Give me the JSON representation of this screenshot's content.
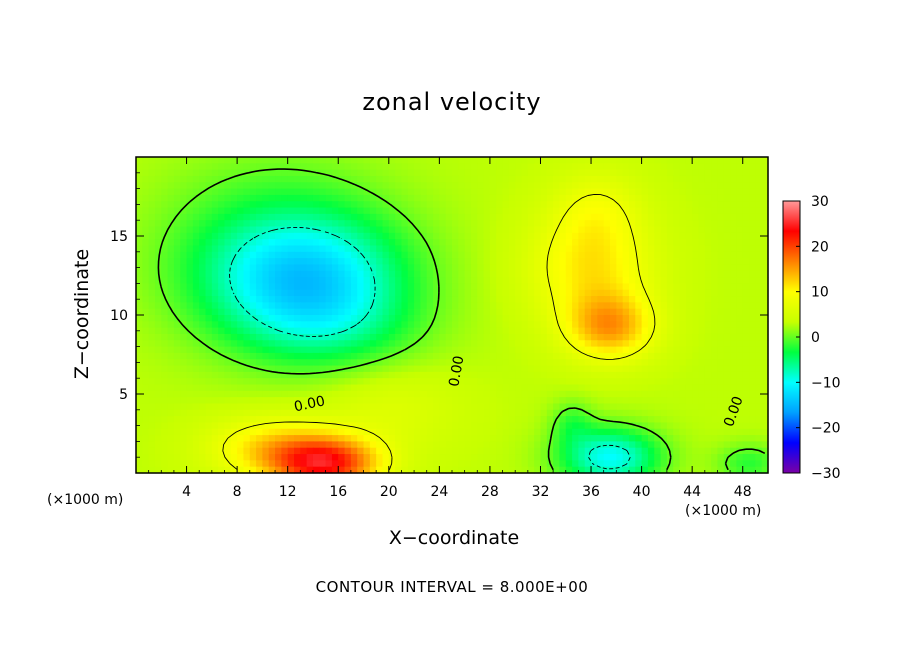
{
  "chart_data": {
    "type": "heatmap",
    "title": "zonal velocity",
    "xlabel": "X−coordinate",
    "ylabel": "Z−coordinate",
    "x_multiplier_left": "(×1000 m)",
    "x_multiplier_right": "(×1000 m)",
    "footer": "CONTOUR INTERVAL = 8.000E+00",
    "xlim": [
      0,
      50
    ],
    "ylim": [
      0,
      20
    ],
    "x_ticks": [
      4,
      8,
      12,
      16,
      20,
      24,
      28,
      32,
      36,
      40,
      44,
      48
    ],
    "x_tick_labels": [
      "4",
      "8",
      "12",
      "16",
      "20",
      "24",
      "28",
      "32",
      "36",
      "40",
      "44",
      "48"
    ],
    "y_ticks": [
      5,
      10,
      15
    ],
    "y_tick_labels": [
      "5",
      "10",
      "15"
    ],
    "colorbar": {
      "range": [
        -30,
        30
      ],
      "ticks": [
        -30,
        -20,
        -10,
        0,
        10,
        20,
        30
      ],
      "tick_labels": [
        "−30",
        "−20",
        "−10",
        "0",
        "10",
        "20",
        "30"
      ],
      "colors": [
        "#7a00a6",
        "#0000ff",
        "#00a0ff",
        "#00ffff",
        "#00ff40",
        "#c8ff00",
        "#ffff00",
        "#ff8000",
        "#ff0000",
        "#ff9a9a"
      ]
    },
    "contour_labels": [
      "0.00",
      "0.00",
      "0.00"
    ],
    "background_value": 3,
    "field_features": [
      {
        "x": 13.5,
        "y": 12.2,
        "value": -13,
        "sx": 5.5,
        "sy": 2.8
      },
      {
        "x": 11.0,
        "y": 14.5,
        "value": -5,
        "sx": 6.5,
        "sy": 4.0
      },
      {
        "x": 15.5,
        "y": 9.0,
        "value": -4,
        "sx": 5.0,
        "sy": 2.0
      },
      {
        "x": 15.0,
        "y": 0.6,
        "value": 19,
        "sx": 3.0,
        "sy": 1.2
      },
      {
        "x": 10.5,
        "y": 1.6,
        "value": 8,
        "sx": 3.5,
        "sy": 1.4
      },
      {
        "x": 37.5,
        "y": 9.2,
        "value": 11,
        "sx": 2.5,
        "sy": 1.5
      },
      {
        "x": 36.0,
        "y": 13.0,
        "value": 8,
        "sx": 3.5,
        "sy": 2.5
      },
      {
        "x": 36.5,
        "y": 16.8,
        "value": 4,
        "sx": 2.5,
        "sy": 1.8
      },
      {
        "x": 37.5,
        "y": 1.0,
        "value": -13,
        "sx": 2.8,
        "sy": 1.3
      },
      {
        "x": 34.5,
        "y": 3.2,
        "value": -4,
        "sx": 1.2,
        "sy": 1.0
      },
      {
        "x": 48.5,
        "y": 0.6,
        "value": -5,
        "sx": 1.8,
        "sy": 0.9
      },
      {
        "x": 20.0,
        "y": 4.0,
        "value": 3,
        "sx": 4.0,
        "sy": 2.0
      }
    ]
  }
}
